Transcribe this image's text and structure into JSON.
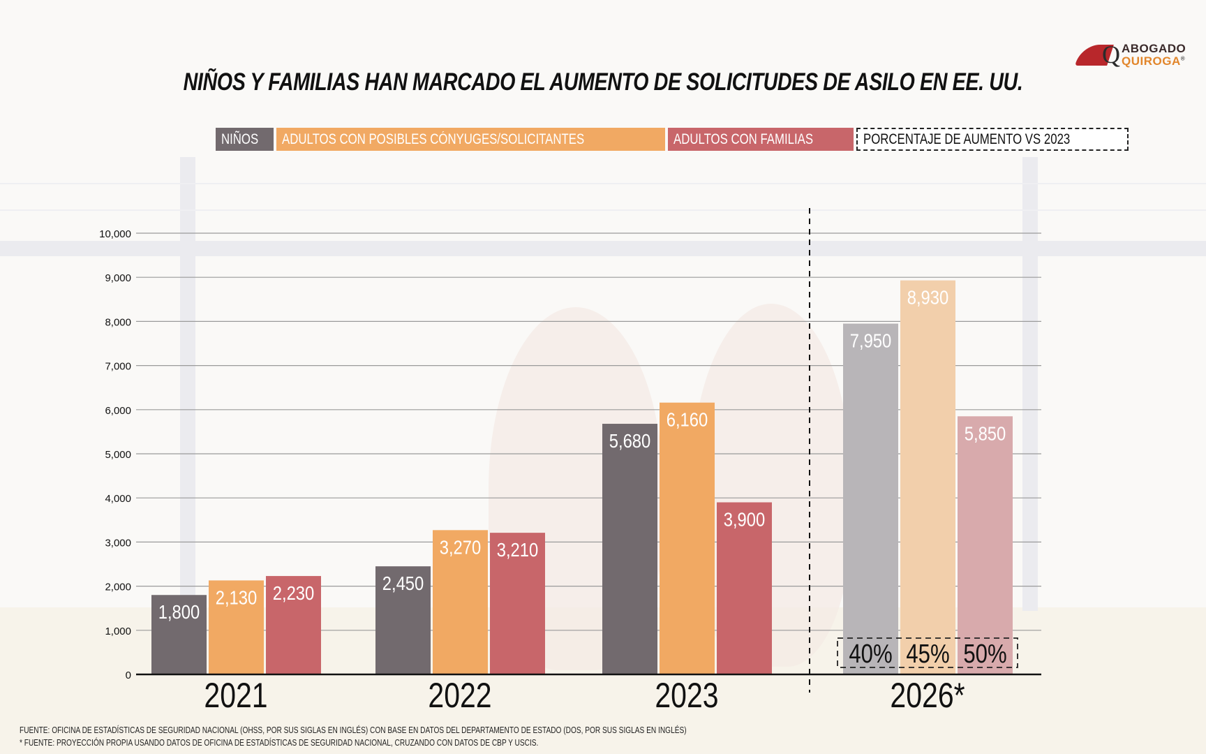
{
  "title": "NIÑOS Y FAMILIAS HAN MARCADO EL AUMENTO DE SOLICITUDES DE ASILO EN EE. UU.",
  "logo": {
    "line1": "ABOGADO",
    "line2": "QUIROGA",
    "registered": "®",
    "icon": "gavel-q-logo-icon"
  },
  "legend": [
    {
      "label": "NIÑOS",
      "color": "#726a6e"
    },
    {
      "label": "ADULTOS CON POSIBLES CÓNYUGES/SOLICITANTES",
      "color": "#f1a963"
    },
    {
      "label": "ADULTOS CON FAMILIAS",
      "color": "#c8666a"
    },
    {
      "label": "PORCENTAJE DE AUMENTO VS 2023",
      "style": "dashed"
    }
  ],
  "chart_data": {
    "type": "bar",
    "title": "NIÑOS Y FAMILIAS HAN MARCADO EL AUMENTO DE SOLICITUDES DE ASILO EN EE. UU.",
    "categories": [
      "2021",
      "2022",
      "2023",
      "2026*"
    ],
    "series": [
      {
        "name": "NIÑOS",
        "color": "#726a6e",
        "projected_color": "#b8b5b8",
        "values": [
          1800,
          2450,
          5680,
          7950
        ],
        "labels": [
          "1,800",
          "2,450",
          "5,680",
          "7,950"
        ]
      },
      {
        "name": "ADULTOS CON POSIBLES CÓNYUGES/SOLICITANTES",
        "color": "#f1a963",
        "projected_color": "#f2cfab",
        "values": [
          2130,
          3270,
          6160,
          8930
        ],
        "labels": [
          "2,130",
          "3,270",
          "6,160",
          "8,930"
        ]
      },
      {
        "name": "ADULTOS CON FAMILIAS",
        "color": "#c8666a",
        "projected_color": "#d8aaac",
        "values": [
          2230,
          3210,
          3900,
          5850
        ],
        "labels": [
          "2,230",
          "3,210",
          "3,900",
          "5,850"
        ]
      }
    ],
    "projected_category": "2026*",
    "percent_increase_vs_2023": [
      "40%",
      "45%",
      "50%"
    ],
    "yticks": [
      0,
      1000,
      2000,
      3000,
      4000,
      5000,
      6000,
      7000,
      8000,
      9000,
      10000
    ],
    "ytick_labels": [
      "0",
      "1,000",
      "2,000",
      "3,000",
      "4,000",
      "5,000",
      "6,000",
      "7,000",
      "8,000",
      "9,000",
      "10,000"
    ],
    "ylim": [
      0,
      10000
    ],
    "xlabel": "",
    "ylabel": "",
    "grid": true,
    "legend_position": "top-center"
  },
  "footnotes": [
    "FUENTE: OFICINA DE ESTADÍSTICAS DE SEGURIDAD NACIONAL (OHSS, POR SUS SIGLAS EN INGLÉS) CON BASE EN DATOS DEL DEPARTAMENTO DE ESTADO (DOS, POR SUS SIGLAS EN INGLÉS)",
    "*  FUENTE: PROYECCIÓN PROPIA USANDO DATOS DE OFICINA DE ESTADÍSTICAS DE SEGURIDAD NACIONAL, CRUZANDO CON DATOS DE CBP Y USCIS."
  ]
}
